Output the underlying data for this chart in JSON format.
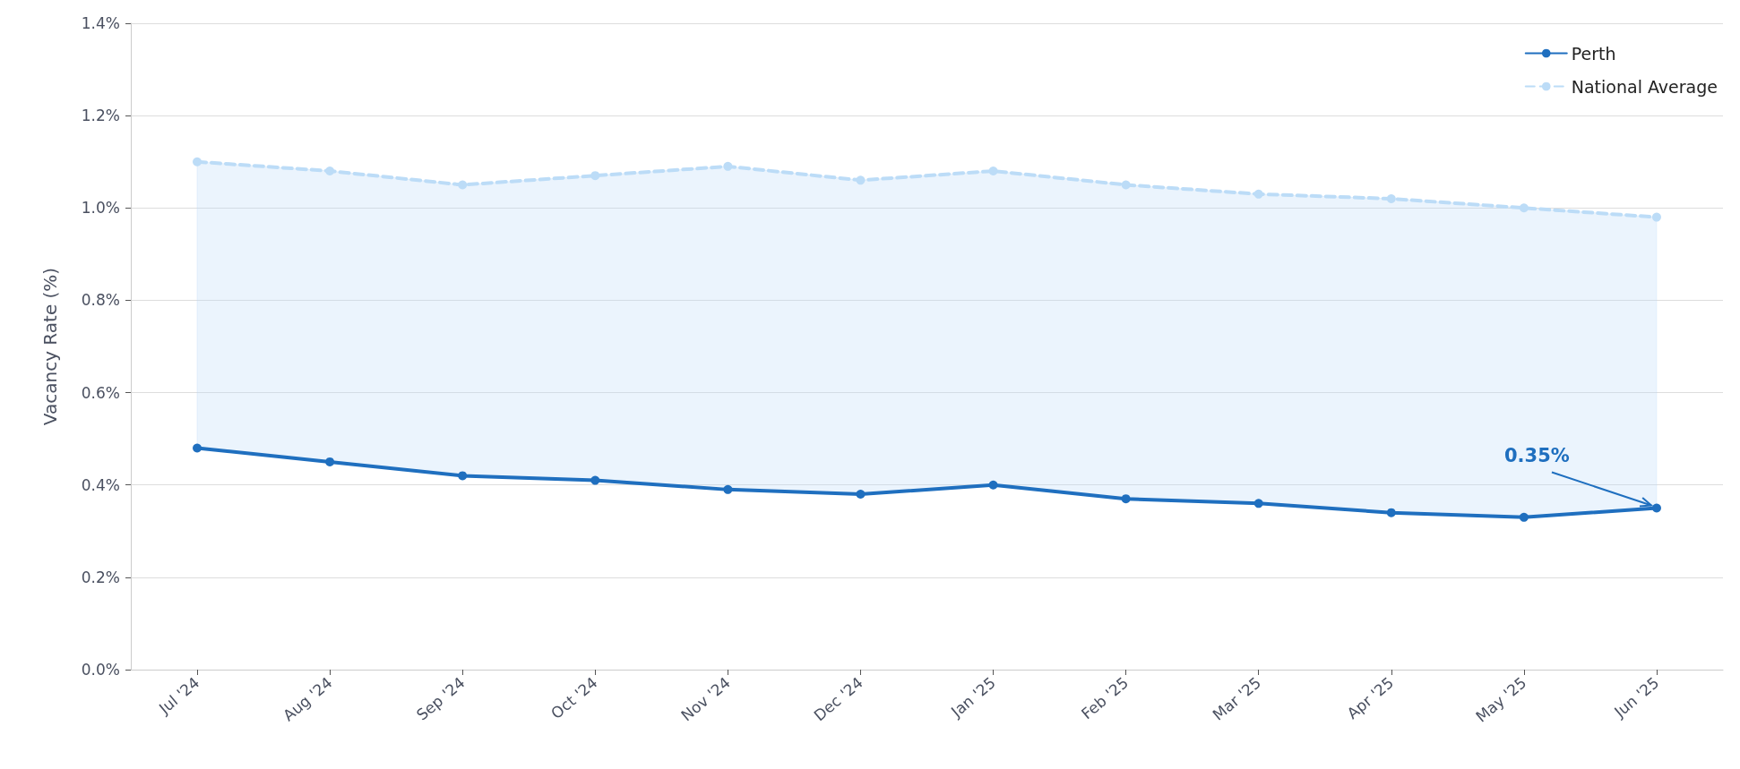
{
  "chart_data": {
    "type": "line",
    "ylabel": "Vacancy Rate (%)",
    "categories": [
      "Jul '24",
      "Aug '24",
      "Sep '24",
      "Oct '24",
      "Nov '24",
      "Dec '24",
      "Jan '25",
      "Feb '25",
      "Mar '25",
      "Apr '25",
      "May '25",
      "Jun '25"
    ],
    "series": [
      {
        "name": "Perth",
        "color": "#1f6fbf",
        "line_style": "solid",
        "values": [
          0.48,
          0.45,
          0.42,
          0.41,
          0.39,
          0.38,
          0.4,
          0.37,
          0.36,
          0.34,
          0.33,
          0.35
        ]
      },
      {
        "name": "National Average",
        "color": "#bcdcf7",
        "line_style": "dashed",
        "values": [
          1.1,
          1.08,
          1.05,
          1.07,
          1.09,
          1.06,
          1.08,
          1.05,
          1.03,
          1.02,
          1.0,
          0.98
        ],
        "lower": [
          0.48,
          0.45,
          0.42,
          0.41,
          0.39,
          0.38,
          0.4,
          0.37,
          0.36,
          0.34,
          0.33,
          0.35
        ],
        "upper": [
          1.1,
          1.08,
          1.05,
          1.07,
          1.09,
          1.06,
          1.08,
          1.05,
          1.03,
          1.02,
          1.0,
          0.98
        ]
      }
    ],
    "ylim": [
      0,
      1.4
    ],
    "yticks": [
      {
        "value": 0,
        "label": "0.0%"
      },
      {
        "value": 0.2,
        "label": "0.2%"
      },
      {
        "value": 0.4,
        "label": "0.4%"
      },
      {
        "value": 0.6,
        "label": "0.6%"
      },
      {
        "value": 0.8,
        "label": "0.8%"
      },
      {
        "value": 1.0,
        "label": "1.0%"
      },
      {
        "value": 1.2,
        "label": "1.2%"
      },
      {
        "value": 1.4,
        "label": "1.4%"
      }
    ],
    "annotations": [
      {
        "text": "0.35%",
        "x": "Jun '25",
        "y": 0.35
      }
    ],
    "grid": "y",
    "legend": "top right",
    "marker": "circle"
  }
}
